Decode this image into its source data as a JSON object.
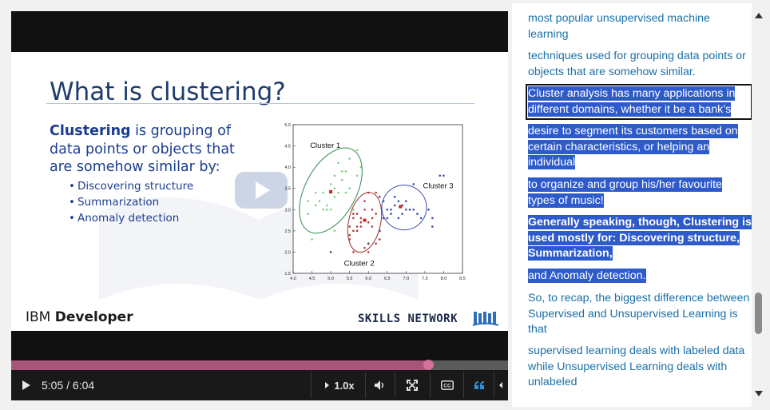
{
  "video": {
    "slide": {
      "title": "What is clustering?",
      "definition_bold": "Clustering",
      "definition_rest": " is grouping of data points or objects that are somehow similar by:",
      "bullets": [
        "Discovering structure",
        "Summarization",
        "Anomaly detection"
      ],
      "footer_left_light": "IBM ",
      "footer_left_bold": "Developer",
      "footer_right": "SKILLS NETWORK"
    },
    "progress_fraction": 0.84,
    "time_display": "5:05 / 6:04",
    "speed_label": "1.0x",
    "colors": {
      "progress": "#a8557a",
      "knob": "#d4709a",
      "highlight": "#2e5bcc",
      "link": "#1a70a8"
    }
  },
  "chart_data": {
    "type": "scatter",
    "xlim": [
      4.0,
      8.5
    ],
    "ylim": [
      1.5,
      5.0
    ],
    "x_ticks": [
      "4.0",
      "4.5",
      "5.0",
      "5.5",
      "6.0",
      "6.5",
      "7.0",
      "7.5",
      "8.0",
      "8.5"
    ],
    "y_ticks": [
      "1.5",
      "2.0",
      "2.5",
      "3.0",
      "3.5",
      "4.0",
      "4.5",
      "5.0"
    ],
    "clusters": [
      {
        "name": "Cluster 1",
        "color": "#7fcf7f",
        "centroid": [
          5.0,
          3.42
        ],
        "points": [
          [
            4.4,
            2.9
          ],
          [
            4.6,
            3.1
          ],
          [
            4.7,
            3.2
          ],
          [
            4.8,
            3.0
          ],
          [
            4.9,
            3.1
          ],
          [
            5.0,
            3.6
          ],
          [
            5.1,
            3.5
          ],
          [
            5.2,
            3.4
          ],
          [
            5.3,
            3.7
          ],
          [
            5.4,
            3.9
          ],
          [
            5.5,
            4.2
          ],
          [
            5.7,
            4.4
          ],
          [
            5.1,
            3.8
          ],
          [
            5.0,
            3.4
          ],
          [
            4.5,
            2.3
          ],
          [
            5.4,
            3.4
          ],
          [
            4.9,
            3.0
          ],
          [
            5.2,
            4.1
          ],
          [
            5.8,
            4.0
          ],
          [
            5.7,
            3.8
          ],
          [
            4.8,
            3.4
          ],
          [
            5.0,
            3.0
          ],
          [
            4.6,
            3.4
          ],
          [
            5.1,
            3.3
          ],
          [
            5.5,
            3.5
          ],
          [
            4.4,
            3.2
          ],
          [
            5.3,
            3.9
          ],
          [
            5.1,
            2.5
          ],
          [
            5.6,
            3.0
          ],
          [
            5.8,
            2.7
          ]
        ]
      },
      {
        "name": "Cluster 2",
        "color": "#b23a3a",
        "centroid": [
          5.9,
          2.75
        ],
        "points": [
          [
            5.5,
            2.3
          ],
          [
            5.6,
            2.5
          ],
          [
            5.7,
            2.6
          ],
          [
            5.8,
            2.7
          ],
          [
            5.9,
            3.0
          ],
          [
            6.0,
            2.2
          ],
          [
            6.1,
            2.8
          ],
          [
            6.2,
            2.9
          ],
          [
            6.3,
            2.3
          ],
          [
            6.0,
            2.7
          ],
          [
            5.6,
            2.8
          ],
          [
            5.7,
            2.9
          ],
          [
            5.8,
            2.6
          ],
          [
            6.1,
            3.0
          ],
          [
            6.2,
            2.2
          ],
          [
            6.3,
            2.5
          ],
          [
            5.5,
            2.4
          ],
          [
            5.9,
            3.2
          ],
          [
            6.0,
            3.4
          ],
          [
            5.6,
            2.9
          ],
          [
            5.8,
            2.8
          ],
          [
            6.1,
            2.6
          ],
          [
            5.7,
            2.5
          ],
          [
            6.2,
            3.4
          ],
          [
            5.5,
            2.6
          ],
          [
            5.9,
            2.1
          ],
          [
            6.0,
            2.0
          ],
          [
            5.6,
            2.0
          ]
        ]
      },
      {
        "name": "Cluster 3",
        "color": "#3a4aa8",
        "centroid": [
          6.85,
          3.07
        ],
        "points": [
          [
            6.3,
            3.3
          ],
          [
            6.4,
            2.8
          ],
          [
            6.5,
            3.0
          ],
          [
            6.6,
            2.9
          ],
          [
            6.7,
            3.1
          ],
          [
            6.8,
            2.8
          ],
          [
            6.9,
            3.1
          ],
          [
            7.0,
            3.2
          ],
          [
            7.1,
            3.0
          ],
          [
            7.2,
            3.6
          ],
          [
            7.3,
            2.9
          ],
          [
            7.4,
            2.8
          ],
          [
            7.6,
            3.0
          ],
          [
            7.7,
            2.8
          ],
          [
            6.4,
            3.2
          ],
          [
            6.7,
            3.3
          ],
          [
            6.9,
            2.9
          ],
          [
            7.0,
            3.0
          ],
          [
            6.5,
            2.8
          ],
          [
            6.8,
            3.2
          ],
          [
            7.9,
            3.8
          ],
          [
            8.0,
            3.8
          ],
          [
            7.2,
            3.0
          ],
          [
            6.3,
            2.5
          ],
          [
            7.7,
            2.6
          ],
          [
            6.6,
            3.0
          ]
        ]
      }
    ],
    "outliers": [
      [
        5.0,
        2.0
      ],
      [
        6.0,
        2.2
      ]
    ],
    "labels": {
      "c1": "Cluster 1",
      "c2": "Cluster 2",
      "c3": "Cluster 3"
    }
  },
  "transcript": {
    "segments": [
      {
        "text": "most popular unsupervised machine learning",
        "selected": false
      },
      {
        "text": "techniques used for grouping data points or objects that are somehow similar.",
        "selected": false
      },
      {
        "text": "Cluster analysis has many applications in different domains, whether it be a bank’s",
        "selected": true,
        "current": true
      },
      {
        "text": "desire to segment its customers based on certain characteristics, or helping an individual",
        "selected": true
      },
      {
        "text": "to organize and group his/her favourite types of music!",
        "selected": true
      },
      {
        "text": "Generally speaking, though, Clustering is used mostly for: Discovering structure, Summarization,",
        "selected": true,
        "bold": true
      },
      {
        "text": "and Anomaly detection.",
        "selected": true
      },
      {
        "text": "So, to recap, the biggest difference between Supervised and Unsupervised Learning is that",
        "selected": false
      },
      {
        "text": "supervised learning deals with labeled data while Unsupervised Learning deals with unlabeled",
        "selected": false
      }
    ]
  },
  "icons": [
    "play-icon",
    "chevron-right-icon",
    "volume-icon",
    "fullscreen-icon",
    "closed-captions-icon",
    "transcript-quote-icon",
    "chevron-left-icon",
    "scroll-up-icon",
    "scroll-down-icon"
  ]
}
